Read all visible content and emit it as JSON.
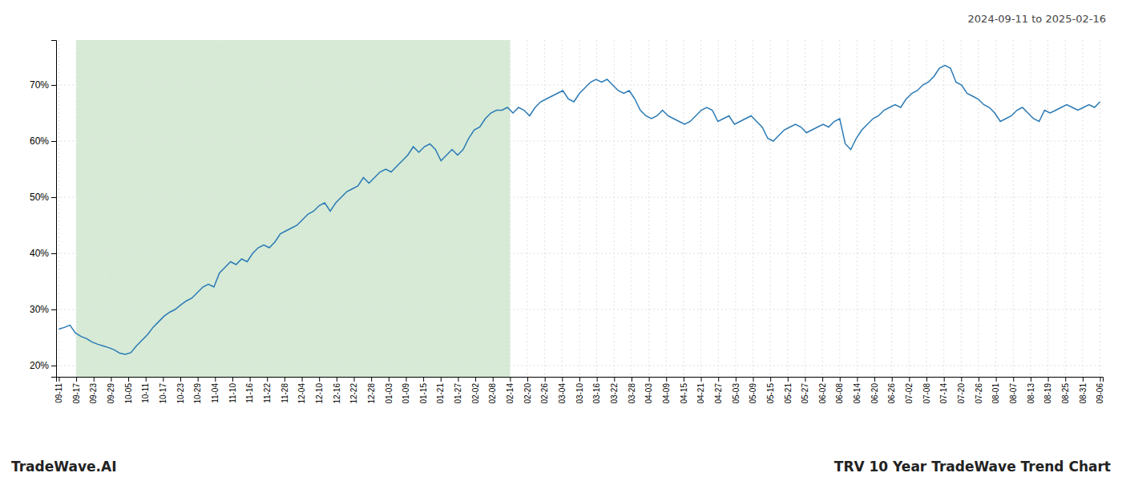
{
  "chart_data": {
    "type": "line",
    "subtitle": "2024-09-11 to 2025-02-16",
    "annotations": [
      "TradeWave.AI",
      "TRV 10 Year TradeWave Trend Chart"
    ],
    "color": "#2a7ab5",
    "grid": true,
    "highlight": {
      "x": [
        3.1333333333333333,
        81.46666666666667
      ],
      "color": "#d6ead6"
    },
    "xlim": [
      -0.5,
      188.5
    ],
    "xticks": [
      {
        "value": 0,
        "label": "09-11"
      },
      {
        "value": 3.1333333333333333,
        "label": "09-17"
      },
      {
        "value": 6.266666666666667,
        "label": "09-23"
      },
      {
        "value": 9.4,
        "label": "09-29"
      },
      {
        "value": 12.533333333333333,
        "label": "10-05"
      },
      {
        "value": 15.666666666666666,
        "label": "10-11"
      },
      {
        "value": 18.8,
        "label": "10-17"
      },
      {
        "value": 21.933333333333334,
        "label": "10-23"
      },
      {
        "value": 25.066666666666666,
        "label": "10-29"
      },
      {
        "value": 28.2,
        "label": "11-04"
      },
      {
        "value": 31.333333333333332,
        "label": "11-10"
      },
      {
        "value": 34.46666666666667,
        "label": "11-16"
      },
      {
        "value": 37.6,
        "label": "11-22"
      },
      {
        "value": 40.733333333333334,
        "label": "11-28"
      },
      {
        "value": 43.86666666666667,
        "label": "12-04"
      },
      {
        "value": 47,
        "label": "12-10"
      },
      {
        "value": 50.13333333333333,
        "label": "12-16"
      },
      {
        "value": 53.266666666666666,
        "label": "12-22"
      },
      {
        "value": 56.4,
        "label": "12-28"
      },
      {
        "value": 59.53333333333333,
        "label": "01-03"
      },
      {
        "value": 62.666666666666664,
        "label": "01-09"
      },
      {
        "value": 65.8,
        "label": "01-15"
      },
      {
        "value": 68.93333333333334,
        "label": "01-21"
      },
      {
        "value": 72.06666666666666,
        "label": "01-27"
      },
      {
        "value": 75.2,
        "label": "02-02"
      },
      {
        "value": 78.33333333333333,
        "label": "02-08"
      },
      {
        "value": 81.46666666666667,
        "label": "02-14"
      },
      {
        "value": 84.6,
        "label": "02-20"
      },
      {
        "value": 87.73333333333333,
        "label": "02-26"
      },
      {
        "value": 90.86666666666666,
        "label": "03-04"
      },
      {
        "value": 94,
        "label": "03-10"
      },
      {
        "value": 97.13333333333334,
        "label": "03-16"
      },
      {
        "value": 100.26666666666667,
        "label": "03-22"
      },
      {
        "value": 103.4,
        "label": "03-28"
      },
      {
        "value": 106.53333333333333,
        "label": "04-03"
      },
      {
        "value": 109.66666666666667,
        "label": "04-09"
      },
      {
        "value": 112.8,
        "label": "04-15"
      },
      {
        "value": 115.93333333333334,
        "label": "04-21"
      },
      {
        "value": 119.06666666666666,
        "label": "04-27"
      },
      {
        "value": 122.2,
        "label": "05-03"
      },
      {
        "value": 125.33333333333333,
        "label": "05-09"
      },
      {
        "value": 128.46666666666667,
        "label": "05-15"
      },
      {
        "value": 131.6,
        "label": "05-21"
      },
      {
        "value": 134.73333333333332,
        "label": "05-27"
      },
      {
        "value": 137.86666666666667,
        "label": "06-02"
      },
      {
        "value": 141,
        "label": "06-08"
      },
      {
        "value": 144.13333333333333,
        "label": "06-14"
      },
      {
        "value": 147.26666666666668,
        "label": "06-20"
      },
      {
        "value": 150.4,
        "label": "06-26"
      },
      {
        "value": 153.53333333333333,
        "label": "07-02"
      },
      {
        "value": 156.66666666666666,
        "label": "07-08"
      },
      {
        "value": 159.8,
        "label": "07-14"
      },
      {
        "value": 162.93333333333334,
        "label": "07-20"
      },
      {
        "value": 166.06666666666666,
        "label": "07-26"
      },
      {
        "value": 169.2,
        "label": "08-01"
      },
      {
        "value": 172.33333333333334,
        "label": "08-07"
      },
      {
        "value": 175.46666666666667,
        "label": "08-13"
      },
      {
        "value": 178.6,
        "label": "08-19"
      },
      {
        "value": 181.73333333333332,
        "label": "08-25"
      },
      {
        "value": 184.86666666666667,
        "label": "08-31"
      },
      {
        "value": 188,
        "label": "09-06"
      }
    ],
    "ylim": [
      18,
      78
    ],
    "yticks": [
      {
        "value": 20,
        "label": "20%"
      },
      {
        "value": 30,
        "label": "30%"
      },
      {
        "value": 40,
        "label": "40%"
      },
      {
        "value": 50,
        "label": "50%"
      },
      {
        "value": 60,
        "label": "60%"
      },
      {
        "value": 70,
        "label": "70%"
      }
    ],
    "values": [
      26.5,
      26.8,
      27.2,
      25.8,
      25.2,
      24.8,
      24.2,
      23.8,
      23.5,
      23.2,
      22.8,
      22.2,
      22.0,
      22.3,
      23.5,
      24.5,
      25.5,
      26.8,
      27.8,
      28.8,
      29.5,
      30.0,
      30.8,
      31.5,
      32.0,
      33.0,
      34.0,
      34.5,
      34.0,
      36.5,
      37.5,
      38.5,
      38.0,
      39.0,
      38.5,
      40.0,
      41.0,
      41.5,
      41.0,
      42.0,
      43.5,
      44.0,
      44.5,
      45.0,
      46.0,
      47.0,
      47.5,
      48.5,
      49.0,
      47.5,
      49.0,
      50.0,
      51.0,
      51.5,
      52.0,
      53.5,
      52.5,
      53.5,
      54.5,
      55.0,
      54.5,
      55.5,
      56.5,
      57.5,
      59.0,
      58.0,
      59.0,
      59.5,
      58.5,
      56.5,
      57.5,
      58.5,
      57.5,
      58.5,
      60.5,
      62.0,
      62.5,
      64.0,
      65.0,
      65.5,
      65.5,
      66.0,
      65.0,
      66.0,
      65.5,
      64.5,
      66.0,
      67.0,
      67.5,
      68.0,
      68.5,
      69.0,
      67.5,
      67.0,
      68.5,
      69.5,
      70.5,
      71.0,
      70.5,
      71.0,
      70.0,
      69.0,
      68.5,
      69.0,
      67.5,
      65.5,
      64.5,
      64.0,
      64.5,
      65.5,
      64.5,
      64.0,
      63.5,
      63.0,
      63.5,
      64.5,
      65.5,
      66.0,
      65.5,
      63.5,
      64.0,
      64.5,
      63.0,
      63.5,
      64.0,
      64.5,
      63.5,
      62.5,
      60.5,
      60.0,
      61.0,
      62.0,
      62.5,
      63.0,
      62.5,
      61.5,
      62.0,
      62.5,
      63.0,
      62.5,
      63.5,
      64.0,
      59.5,
      58.5,
      60.5,
      62.0,
      63.0,
      64.0,
      64.5,
      65.5,
      66.0,
      66.5,
      66.0,
      67.5,
      68.5,
      69.0,
      70.0,
      70.5,
      71.5,
      73.0,
      73.5,
      73.0,
      70.5,
      70.0,
      68.5,
      68.0,
      67.5,
      66.5,
      66.0,
      65.0,
      63.5,
      64.0,
      64.5,
      65.5,
      66.0,
      65.0,
      64.0,
      63.5,
      65.5,
      65.0,
      65.5,
      66.0,
      66.5,
      66.0,
      65.5,
      66.0,
      66.5,
      66.0,
      67.0
    ]
  }
}
